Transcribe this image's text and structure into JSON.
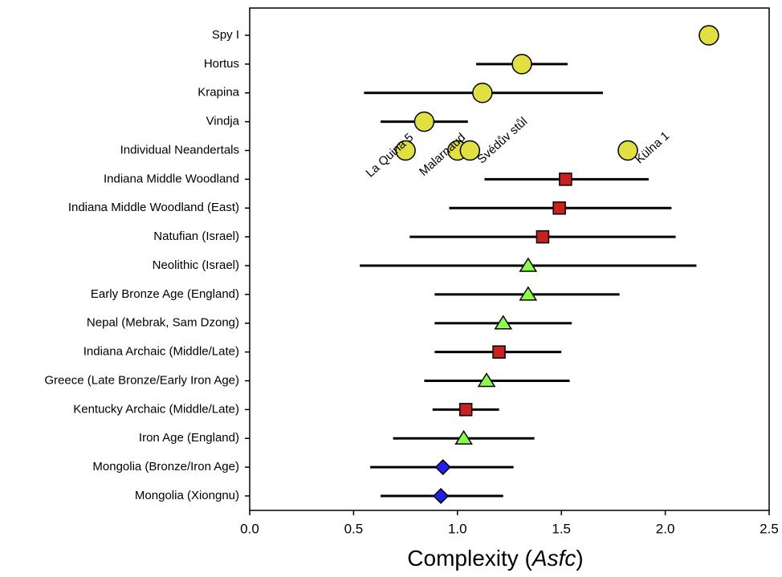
{
  "chart_data": {
    "type": "dot-errorbar",
    "categories": [
      "Spy I",
      "Hortus",
      "Krapina",
      "Vindja",
      "Individual Neandertals",
      "Indiana Middle Woodland",
      "Indiana Middle Woodland (East)",
      "Natufian (Israel)",
      "Neolithic (Israel)",
      "Early Bronze Age (England)",
      "Nepal (Mebrak, Sam Dzong)",
      "Indiana Archaic (Middle/Late)",
      "Greece (Late Bronze/Early Iron Age)",
      "Kentucky Archaic (Middle/Late)",
      "Iron Age (England)",
      "Mongolia (Bronze/Iron Age)",
      "Mongolia (Xiongnu)"
    ],
    "xlabel": [
      "Complexity (",
      "Asfc",
      ")"
    ],
    "xlim": [
      0,
      2.5
    ],
    "xticks": [
      {
        "value": 0,
        "label": "0.0"
      },
      0.5,
      {
        "value": 1,
        "label": "1.0"
      },
      1.5,
      {
        "value": 2,
        "label": "2.0"
      },
      2.5
    ],
    "series": [
      {
        "marker": "circle",
        "color": "#e0e040",
        "values": [
          2.21,
          1.31,
          1.12,
          0.84,
          null,
          null,
          null,
          null,
          null,
          null,
          null,
          null,
          null,
          null,
          null,
          null,
          null
        ],
        "low": [
          null,
          1.09,
          0.55,
          0.63,
          null,
          null,
          null,
          null,
          null,
          null,
          null,
          null,
          null,
          null,
          null,
          null,
          null
        ],
        "high": [
          null,
          1.53,
          1.7,
          1.05,
          null,
          null,
          null,
          null,
          null,
          null,
          null,
          null,
          null,
          null,
          null,
          null,
          null
        ]
      },
      {
        "name": "La Quina 5",
        "marker": "circle",
        "color": "#e0e040",
        "values": [
          null,
          null,
          null,
          null,
          0.75,
          null,
          null,
          null,
          null,
          null,
          null,
          null,
          null,
          null,
          null,
          null,
          null
        ]
      },
      {
        "name": "Malarnaud",
        "marker": "circle",
        "color": "#e0e040",
        "values": [
          null,
          null,
          null,
          null,
          1.0,
          null,
          null,
          null,
          null,
          null,
          null,
          null,
          null,
          null,
          null,
          null,
          null
        ]
      },
      {
        "name": "Svédův stůl",
        "marker": "circle",
        "color": "#e0e040",
        "values": [
          null,
          null,
          null,
          null,
          1.06,
          null,
          null,
          null,
          null,
          null,
          null,
          null,
          null,
          null,
          null,
          null,
          null
        ]
      },
      {
        "name": "Külna 1",
        "marker": "circle",
        "color": "#e0e040",
        "values": [
          null,
          null,
          null,
          null,
          1.82,
          null,
          null,
          null,
          null,
          null,
          null,
          null,
          null,
          null,
          null,
          null,
          null
        ]
      },
      {
        "marker": "square",
        "color": "#cc2020",
        "values": [
          null,
          null,
          null,
          null,
          null,
          1.52,
          1.49,
          1.41,
          null,
          null,
          null,
          1.2,
          null,
          1.04,
          null,
          null,
          null
        ],
        "low": [
          null,
          null,
          null,
          null,
          null,
          1.13,
          0.96,
          0.77,
          null,
          null,
          null,
          0.89,
          null,
          0.88,
          null,
          null,
          null
        ],
        "high": [
          null,
          null,
          null,
          null,
          null,
          1.92,
          2.03,
          2.05,
          null,
          null,
          null,
          1.5,
          null,
          1.2,
          null,
          null,
          null
        ]
      },
      {
        "marker": "triangle",
        "color": "#88ff44",
        "values": [
          null,
          null,
          null,
          null,
          null,
          null,
          null,
          null,
          1.34,
          1.34,
          1.22,
          null,
          1.14,
          null,
          1.03,
          null,
          null
        ],
        "low": [
          null,
          null,
          null,
          null,
          null,
          null,
          null,
          null,
          0.53,
          0.89,
          0.89,
          null,
          0.84,
          null,
          0.69,
          null,
          null
        ],
        "high": [
          null,
          null,
          null,
          null,
          null,
          null,
          null,
          null,
          2.15,
          1.78,
          1.55,
          null,
          1.54,
          null,
          1.37,
          null,
          null
        ]
      },
      {
        "marker": "diamond",
        "color": "#2020ee",
        "values": [
          null,
          null,
          null,
          null,
          null,
          null,
          null,
          null,
          null,
          null,
          null,
          null,
          null,
          null,
          null,
          0.93,
          0.92
        ],
        "low": [
          null,
          null,
          null,
          null,
          null,
          null,
          null,
          null,
          null,
          null,
          null,
          null,
          null,
          null,
          null,
          0.58,
          0.63
        ],
        "high": [
          null,
          null,
          null,
          null,
          null,
          null,
          null,
          null,
          null,
          null,
          null,
          null,
          null,
          null,
          null,
          1.27,
          1.22
        ]
      }
    ]
  }
}
